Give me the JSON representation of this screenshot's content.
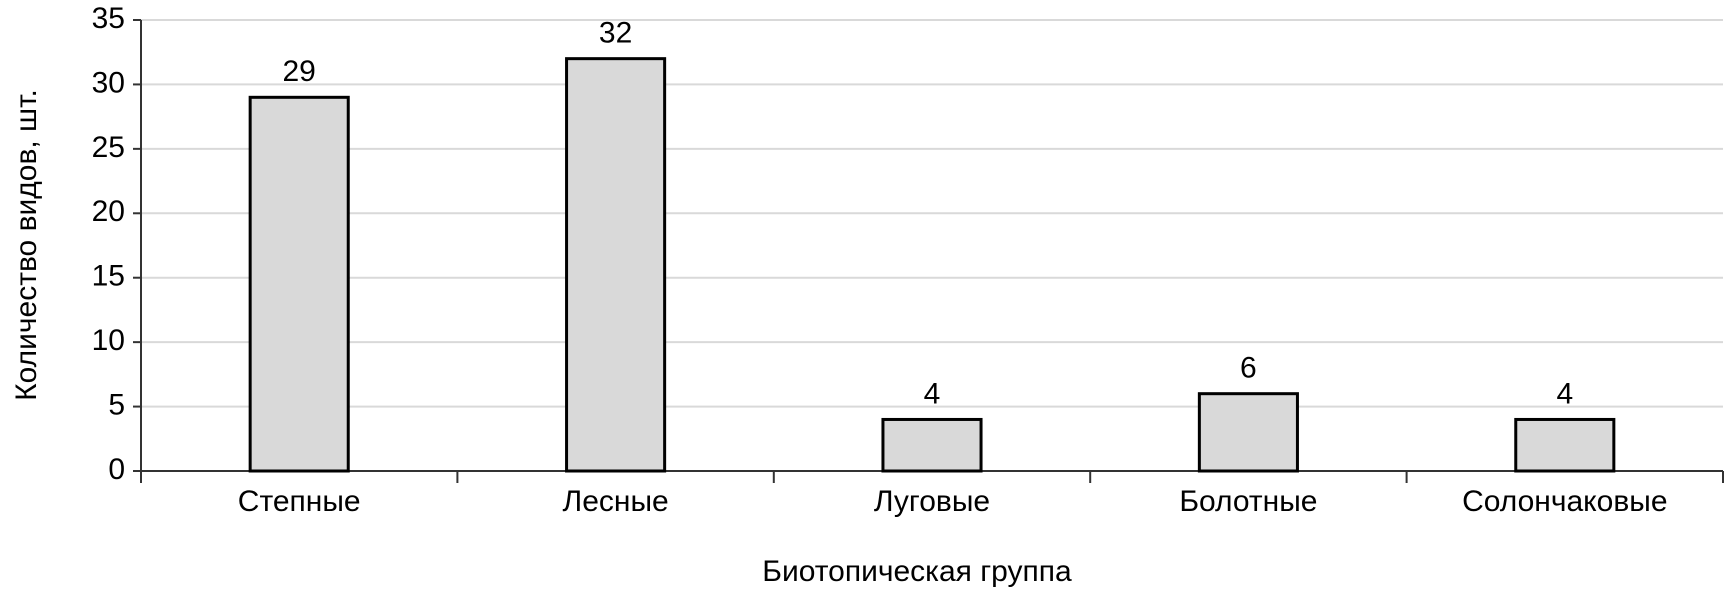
{
  "chart_data": {
    "type": "bar",
    "x_label": "Биотопическая группа",
    "y_label": "Количество видов, шт.",
    "categories": [
      "Степные",
      "Лесные",
      "Луговые",
      "Болотные",
      "Солончаковые"
    ],
    "values": [
      29,
      32,
      4,
      6,
      4
    ],
    "color": "#d9d9d9",
    "ylim": [
      0,
      35
    ],
    "yticks": [
      0,
      5,
      10,
      15,
      20,
      25,
      30,
      35
    ],
    "grid": true
  }
}
